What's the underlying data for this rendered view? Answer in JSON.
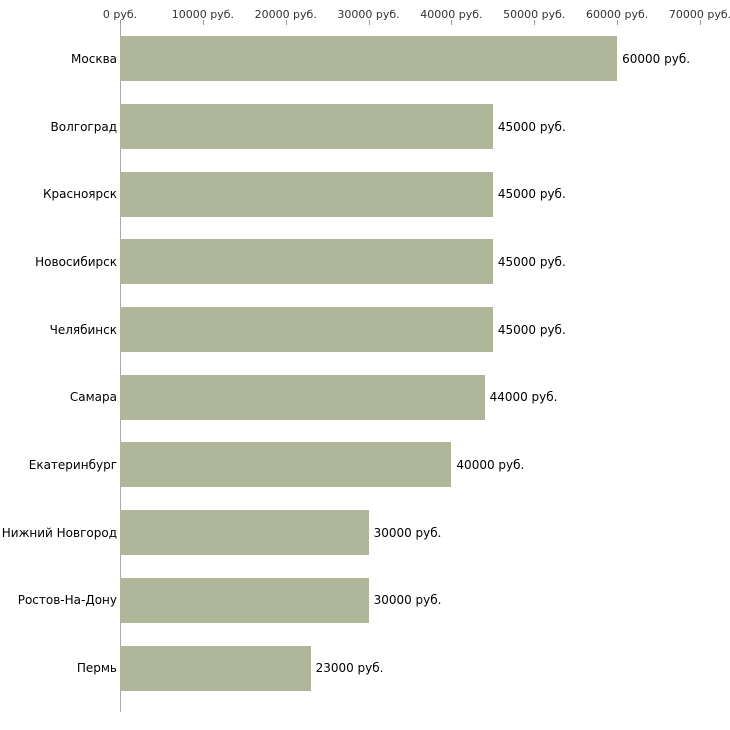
{
  "chart_data": {
    "type": "bar",
    "orientation": "horizontal",
    "title": "",
    "xlabel": "",
    "ylabel": "",
    "categories": [
      "Москва",
      "Волгоград",
      "Красноярск",
      "Новосибирск",
      "Челябинск",
      "Самара",
      "Екатеринбург",
      "Нижний Новгород",
      "Ростов-На-Дону",
      "Пермь"
    ],
    "values": [
      60000,
      45000,
      45000,
      45000,
      45000,
      44000,
      40000,
      30000,
      30000,
      23000
    ],
    "value_labels": [
      "60000 руб.",
      "45000 руб.",
      "45000 руб.",
      "45000 руб.",
      "45000 руб.",
      "44000 руб.",
      "40000 руб.",
      "30000 руб.",
      "30000 руб.",
      "23000 руб."
    ],
    "x_ticks": [
      0,
      10000,
      20000,
      30000,
      40000,
      50000,
      60000,
      70000
    ],
    "x_tick_labels": [
      "0 руб.",
      "10000 руб.",
      "20000 руб.",
      "30000 руб.",
      "40000 руб.",
      "50000 руб.",
      "60000 руб.",
      "70000 руб."
    ],
    "xlim": [
      0,
      70000
    ],
    "grid": false,
    "legend": false,
    "bar_color": "#b0b69a",
    "axis_color": "#aaaaaa",
    "tick_label_color": "#333333",
    "label_color": "#000000"
  }
}
